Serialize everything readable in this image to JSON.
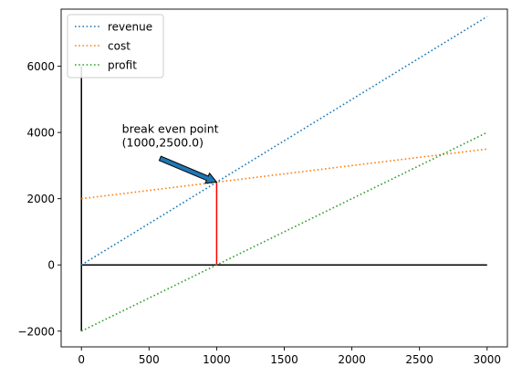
{
  "chart_data": {
    "type": "line",
    "title": "",
    "xlabel": "",
    "ylabel": "",
    "xlim": [
      -150,
      3150
    ],
    "ylim": [
      -2475,
      7725
    ],
    "x_ticks": [
      0,
      500,
      1000,
      1500,
      2000,
      2500,
      3000
    ],
    "y_ticks": [
      -2000,
      0,
      2000,
      4000,
      6000
    ],
    "grid": false,
    "legend_position": "upper-left",
    "series": [
      {
        "name": "revenue",
        "color": "#1f77b4",
        "style": "dotted",
        "x": [
          0,
          3000
        ],
        "y": [
          0,
          7500
        ]
      },
      {
        "name": "cost",
        "color": "#ff7f0e",
        "style": "dotted",
        "x": [
          0,
          3000
        ],
        "y": [
          2000,
          3500
        ]
      },
      {
        "name": "profit",
        "color": "#2ca02c",
        "style": "dotted",
        "x": [
          0,
          3000
        ],
        "y": [
          -2000,
          4000
        ]
      }
    ],
    "reference_lines": [
      {
        "kind": "horizontal",
        "color": "#000000",
        "y": 0,
        "x": [
          0,
          3000
        ]
      },
      {
        "kind": "vertical",
        "color": "#000000",
        "x": 0,
        "y": [
          -2000,
          6000
        ]
      },
      {
        "kind": "vertical",
        "color": "#ff0000",
        "x": 1000,
        "y": [
          0,
          2500
        ]
      }
    ],
    "annotation": {
      "lines": [
        "break even point",
        "(1000,2500.0)"
      ],
      "point": [
        1000,
        2500
      ],
      "text_anchor": [
        300,
        3500
      ],
      "arrow_facecolor": "#1f77b4"
    }
  }
}
